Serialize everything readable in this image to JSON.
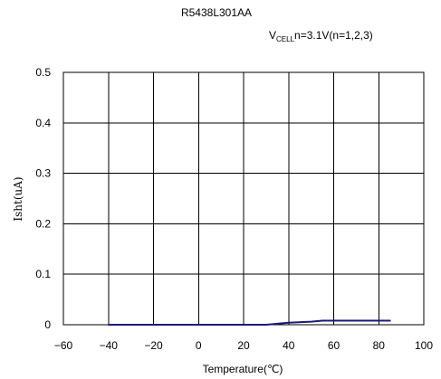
{
  "chart_data": {
    "type": "line",
    "title": "R5438L301AA",
    "condition": {
      "prefix": "V",
      "subscript": "CELL",
      "suffix": "n=3.1V(n=1,2,3)"
    },
    "xlabel": "Temperature(℃)",
    "ylabel": "Isht(uA)",
    "xlim": [
      -60,
      100
    ],
    "ylim": [
      0,
      0.5
    ],
    "xticks": [
      -60,
      -40,
      -20,
      0,
      20,
      40,
      60,
      80,
      100
    ],
    "yticks": [
      0,
      0.1,
      0.2,
      0.3,
      0.4,
      0.5
    ],
    "xtick_labels": [
      "−60",
      "−40",
      "−20",
      "0",
      "20",
      "40",
      "60",
      "80",
      "100"
    ],
    "ytick_labels": [
      "0",
      "0.1",
      "0.2",
      "0.3",
      "0.4",
      "0.5"
    ],
    "grid": true,
    "legend": "none",
    "series": [
      {
        "color": "#1a1a7a",
        "x": [
          -40,
          -20,
          0,
          20,
          30,
          40,
          50,
          55,
          60,
          70,
          85
        ],
        "y": [
          0,
          0,
          0,
          0,
          0,
          0.004,
          0.006,
          0.008,
          0.008,
          0.008,
          0.008
        ]
      }
    ]
  }
}
